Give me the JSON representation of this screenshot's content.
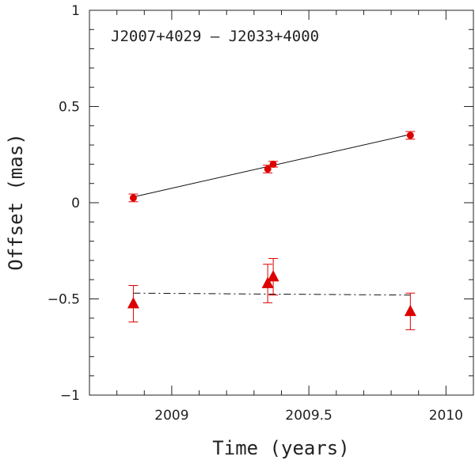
{
  "chart_data": {
    "type": "scatter",
    "title": "J2007+4029 – J2033+4000",
    "xlabel": "Time (years)",
    "ylabel": "Offset (mas)",
    "xlim": [
      2008.7,
      2010.1
    ],
    "ylim": [
      -1,
      1
    ],
    "x_ticks": [
      2009,
      2009.5,
      2010
    ],
    "x_tick_labels": [
      "2009",
      "2009.5",
      "2010"
    ],
    "y_ticks": [
      -1,
      -0.5,
      0,
      0.5,
      1
    ],
    "y_tick_labels": [
      "−1",
      "−0.5",
      "0",
      "0.5",
      "1"
    ],
    "grid": false,
    "series": [
      {
        "marker": "circle",
        "color": "#dd0000",
        "points": [
          {
            "x": 2008.86,
            "y": 0.025,
            "err": 0.02
          },
          {
            "x": 2009.35,
            "y": 0.175,
            "err": 0.02
          },
          {
            "x": 2009.37,
            "y": 0.2,
            "err": 0.015
          },
          {
            "x": 2009.87,
            "y": 0.35,
            "err": 0.02
          }
        ],
        "fit": {
          "style": "solid",
          "x": [
            2008.86,
            2009.87
          ],
          "y": [
            0.03,
            0.355
          ]
        }
      },
      {
        "marker": "triangle",
        "color": "#dd0000",
        "points": [
          {
            "x": 2008.86,
            "y": -0.525,
            "err": 0.095
          },
          {
            "x": 2009.35,
            "y": -0.42,
            "err": 0.1
          },
          {
            "x": 2009.37,
            "y": -0.385,
            "err": 0.095
          },
          {
            "x": 2009.87,
            "y": -0.565,
            "err": 0.095
          }
        ],
        "fit": {
          "style": "dashed",
          "x": [
            2008.86,
            2009.87
          ],
          "y": [
            -0.47,
            -0.48
          ]
        }
      }
    ]
  }
}
